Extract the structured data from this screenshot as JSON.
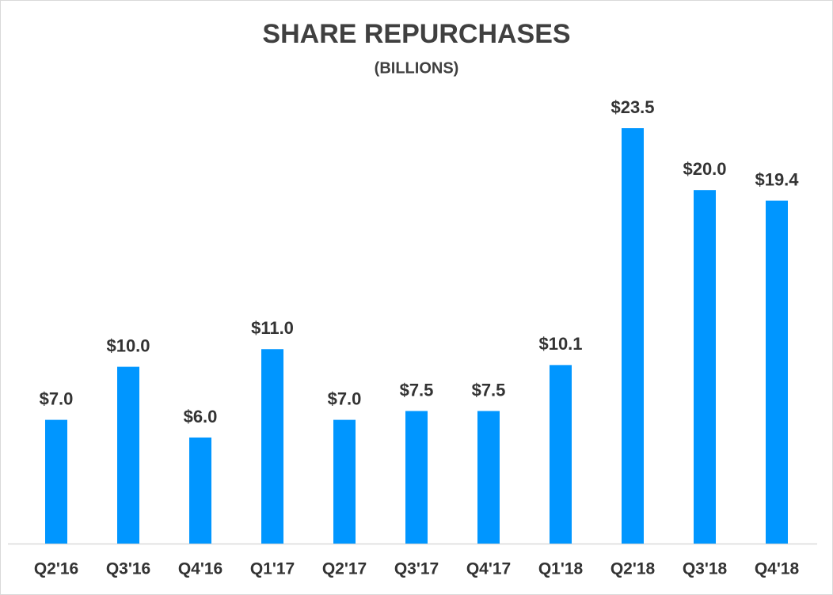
{
  "chart_data": {
    "type": "bar",
    "title": "SHARE REPURCHASES",
    "subtitle": "(BILLIONS)",
    "categories": [
      "Q2'16",
      "Q3'16",
      "Q4'16",
      "Q1'17",
      "Q2'17",
      "Q3'17",
      "Q4'17",
      "Q1'18",
      "Q2'18",
      "Q3'18",
      "Q4'18"
    ],
    "values": [
      7.0,
      10.0,
      6.0,
      11.0,
      7.0,
      7.5,
      7.5,
      10.1,
      23.5,
      20.0,
      19.4
    ],
    "value_labels": [
      "$7.0",
      "$10.0",
      "$6.0",
      "$11.0",
      "$7.0",
      "$7.5",
      "$7.5",
      "$10.1",
      "$23.5",
      "$20.0",
      "$19.4"
    ],
    "color": "#0096ff"
  }
}
